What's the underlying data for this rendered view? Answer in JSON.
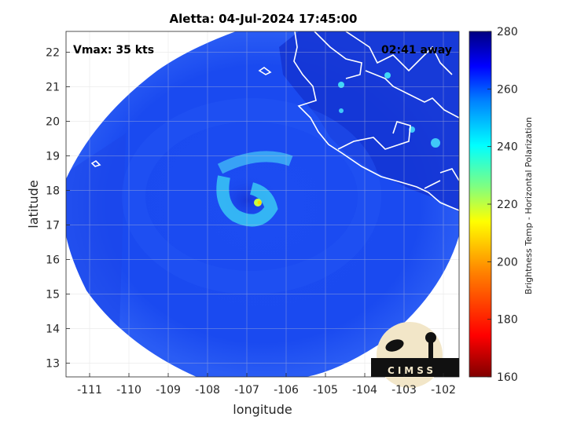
{
  "title": "Aletta: 04-Jul-2024 17:45:00",
  "vmax_label": "Vmax: 35 kts",
  "time_away": "02:41 away",
  "xlabel": "longitude",
  "ylabel": "latitude",
  "x_ticks": [
    "-111",
    "-110",
    "-109",
    "-108",
    "-107",
    "-106",
    "-105",
    "-104",
    "-103",
    "-102"
  ],
  "y_ticks": [
    "13",
    "14",
    "15",
    "16",
    "17",
    "18",
    "19",
    "20",
    "21",
    "22"
  ],
  "colorbar": {
    "label": "Brightness Temp - Horizontal Polarization",
    "ticks": [
      "160",
      "180",
      "200",
      "220",
      "240",
      "260",
      "280"
    ],
    "range": [
      160,
      280
    ],
    "colormap": [
      "#800000",
      "#ff0000",
      "#ff8000",
      "#ffff00",
      "#80ff80",
      "#00ffff",
      "#0080ff",
      "#0000ff",
      "#000080"
    ]
  },
  "logo": {
    "text": "CIMSS"
  },
  "colors": {
    "field": "#1a48f0",
    "swath_edge": "#3a70f5",
    "coast": "#ffffff"
  },
  "chart_data": {
    "type": "heatmap",
    "xlim": [
      -111.6,
      -101.6
    ],
    "ylim": [
      12.6,
      22.6
    ],
    "grid": true,
    "storm_center": {
      "lon": -106.7,
      "lat": 17.6
    }
  }
}
